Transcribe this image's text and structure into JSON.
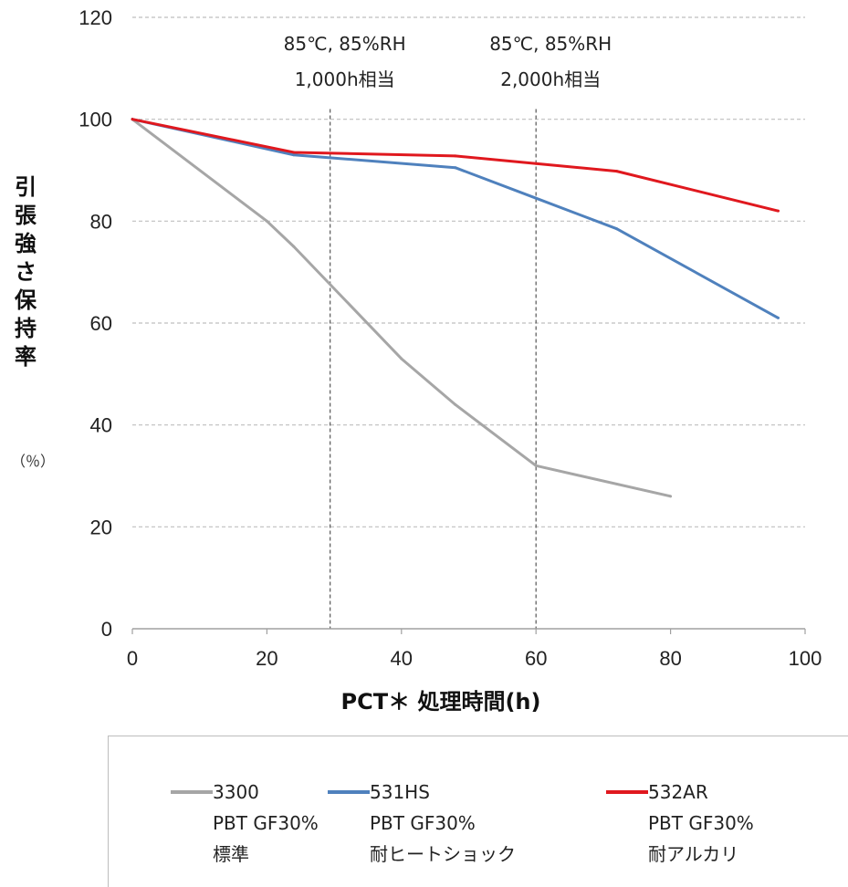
{
  "chart_data": {
    "type": "line",
    "x": [
      0,
      20,
      24,
      40,
      48,
      60,
      72,
      80,
      96
    ],
    "series": [
      {
        "name": "3300",
        "color": "#a6a6a6",
        "x": [
          0,
          20,
          24,
          40,
          48,
          60,
          80
        ],
        "values": [
          100,
          80,
          75,
          53,
          44,
          32,
          26
        ]
      },
      {
        "name": "531HS",
        "color": "#4f81bd",
        "x": [
          0,
          24,
          48,
          60,
          72,
          96
        ],
        "values": [
          100,
          93,
          90.5,
          84.5,
          78.5,
          61
        ]
      },
      {
        "name": "532AR",
        "color": "#e0181e",
        "x": [
          0,
          24,
          48,
          60,
          72,
          96
        ],
        "values": [
          100,
          93.5,
          92.8,
          91.3,
          89.8,
          82
        ]
      }
    ],
    "xlabel": "PCT＊ 処理時間(h)",
    "ylabel": "引張強さ保持率",
    "yunit": "（％）",
    "xlim": [
      0,
      100
    ],
    "ylim": [
      0,
      120
    ],
    "xticks": [
      "0",
      "20",
      "40",
      "60",
      "80",
      "100"
    ],
    "yticks": [
      "0",
      "20",
      "40",
      "60",
      "80",
      "100",
      "120"
    ],
    "grid": "horizontal dashed",
    "reference_lines": [
      {
        "x": 29.4,
        "label_line1": "85℃, 85%RH",
        "label_line2": "1,000h相当"
      },
      {
        "x": 60,
        "label_line1": "85℃, 85%RH",
        "label_line2": "2,000h相当"
      }
    ]
  },
  "legend": {
    "placement": "bottom",
    "entries": [
      {
        "name": "3300",
        "line2": "PBT GF30%",
        "line3": "標準",
        "color": "#a6a6a6"
      },
      {
        "name": "531HS",
        "line2": "PBT GF30%",
        "line3": "耐ヒートショック",
        "color": "#4f81bd"
      },
      {
        "name": "532AR",
        "line2": "PBT GF30%",
        "line3": "耐アルカリ",
        "color": "#e0181e"
      }
    ]
  }
}
